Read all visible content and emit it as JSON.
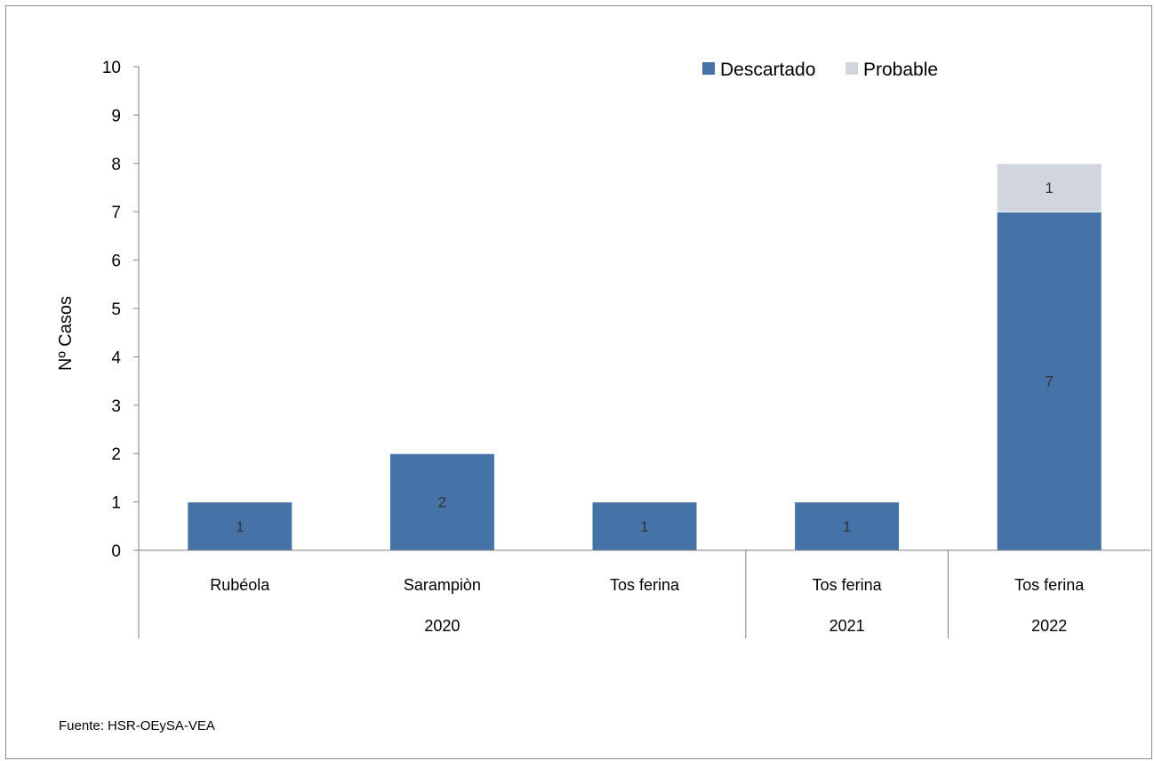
{
  "chart_data": {
    "type": "bar",
    "stacked": true,
    "categories": [
      "Rubéola",
      "Sarampiòn",
      "Tos ferina",
      "Tos ferina",
      "Tos ferina"
    ],
    "groups": [
      {
        "label": "2020",
        "count": 3
      },
      {
        "label": "2021",
        "count": 1
      },
      {
        "label": "2022",
        "count": 1
      }
    ],
    "series": [
      {
        "name": "Descartado",
        "color": "#4572a7",
        "values": [
          1,
          2,
          1,
          1,
          7
        ]
      },
      {
        "name": "Probable",
        "color": "#d0d5de",
        "values": [
          0,
          0,
          0,
          0,
          1
        ]
      }
    ],
    "ylabel": "Nº Casos",
    "ylim": [
      0,
      10
    ],
    "yticks": [
      "0",
      "1",
      "2",
      "3",
      "4",
      "5",
      "6",
      "7",
      "8",
      "9",
      "10"
    ],
    "legend_position": "top-right",
    "grid": false
  },
  "source_note": "Fuente: HSR-OEySA-VEA"
}
